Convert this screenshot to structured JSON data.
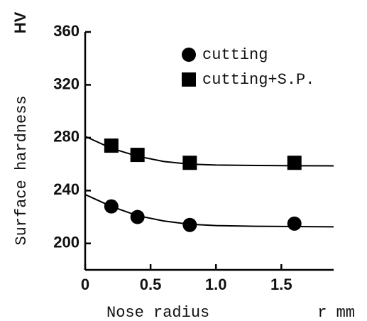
{
  "chart_data": {
    "type": "scatter",
    "y_label": "Surface hardness",
    "y_unit": "HV",
    "x_label": "Nose radius",
    "x_unit": "r mm",
    "xlim": [
      0,
      1.9
    ],
    "xticks": [
      0,
      0.5,
      {
        "value": 1,
        "label": "1.0"
      },
      1.5
    ],
    "ylim": [
      180,
      360
    ],
    "yticks": [
      200,
      240,
      280,
      320,
      360
    ],
    "legend": "top-right",
    "series": [
      {
        "name": "cutting",
        "marker": "circle",
        "color": "#000000",
        "x": [
          0.2,
          0.4,
          0.8,
          1.6
        ],
        "values": [
          228,
          220,
          214,
          215
        ],
        "curve_x": [
          0,
          0.2,
          0.4,
          0.6,
          0.8,
          1.0,
          1.3,
          1.6,
          1.9
        ],
        "curve_y": [
          237,
          228,
          221,
          217,
          214.5,
          213.5,
          213,
          212.8,
          212.6
        ]
      },
      {
        "name": "cutting+S.P.",
        "marker": "square",
        "color": "#000000",
        "x": [
          0.2,
          0.4,
          0.8,
          1.6
        ],
        "values": [
          274,
          267,
          261,
          261
        ],
        "curve_x": [
          0,
          0.2,
          0.4,
          0.6,
          0.8,
          1.0,
          1.3,
          1.6,
          1.9
        ],
        "curve_y": [
          281,
          272,
          266,
          262,
          260,
          259.3,
          259,
          258.8,
          258.7
        ]
      }
    ]
  }
}
